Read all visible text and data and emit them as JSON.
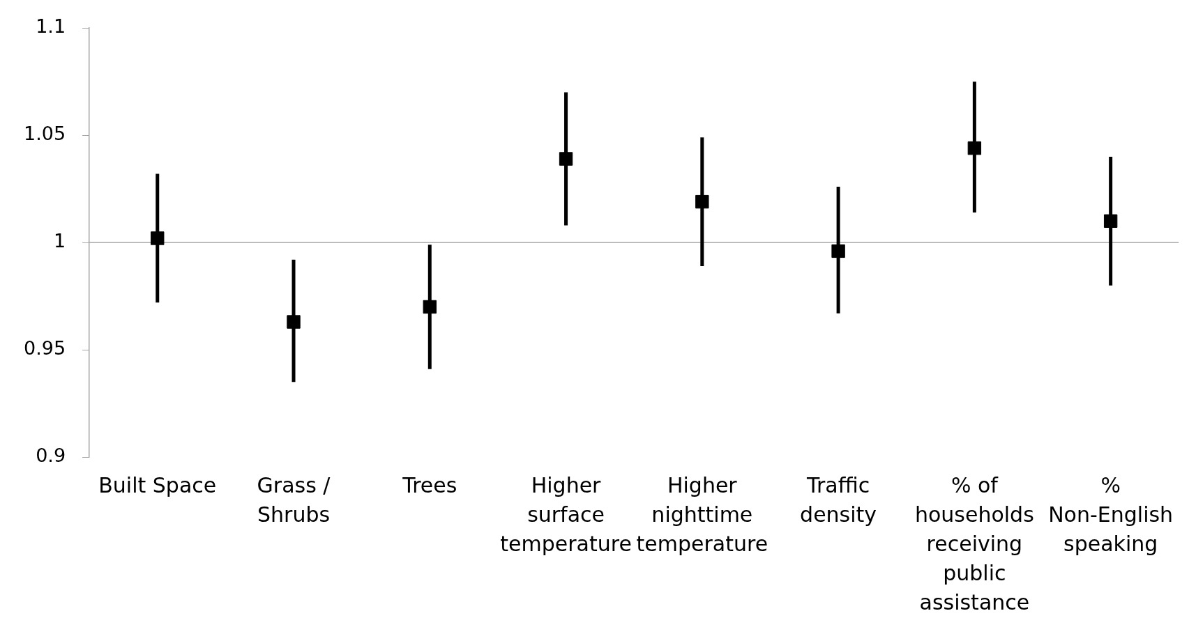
{
  "chart_data": {
    "type": "scatter",
    "categories": [
      "Built Space",
      "Grass / Shrubs",
      "Trees",
      "Higher surface temperature",
      "Higher nighttime temperature",
      "Traffic density",
      "% of households receiving public assistance",
      "% Non-English speaking"
    ],
    "series": [
      {
        "color": "#000000",
        "values": [
          1.002,
          0.963,
          0.97,
          1.039,
          1.019,
          0.996,
          1.044,
          1.01
        ],
        "errors": [
          [
            0.972,
            1.032
          ],
          [
            0.935,
            0.992
          ],
          [
            0.941,
            0.999
          ],
          [
            1.008,
            1.07
          ],
          [
            0.989,
            1.049
          ],
          [
            0.967,
            1.026
          ],
          [
            1.014,
            1.075
          ],
          [
            0.98,
            1.04
          ]
        ]
      }
    ],
    "ylim": [
      0.9,
      1.1
    ],
    "yticks": [
      0.9,
      0.95,
      1,
      1.05,
      1.1
    ],
    "marker": "square",
    "grid": false,
    "legend": false,
    "ref_lines": [
      {
        "axis": "y",
        "value": 1,
        "color": "#a6a6a6"
      }
    ]
  }
}
